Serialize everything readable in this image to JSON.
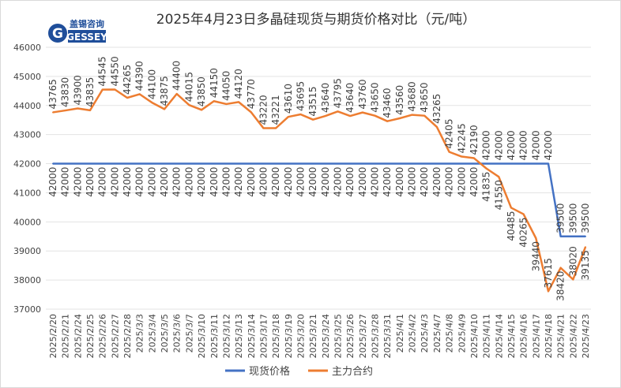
{
  "logo": {
    "cn": "盖锡咨询",
    "en": "GESSEY"
  },
  "chart_data": {
    "type": "line",
    "title": "2025年4月23日多晶硅现货与期货价格对比（元/吨）",
    "ylim": [
      37000,
      46000
    ],
    "yticks": [
      37000,
      38000,
      39000,
      40000,
      41000,
      42000,
      43000,
      44000,
      45000,
      46000
    ],
    "grid": true,
    "legend_position": "bottom",
    "categories": [
      "2025/2/20",
      "2025/2/21",
      "2025/2/24",
      "2025/2/25",
      "2025/2/26",
      "2025/2/27",
      "2025/2/28",
      "2025/3/3",
      "2025/3/4",
      "2025/3/5",
      "2025/3/6",
      "2025/3/7",
      "2025/3/10",
      "2025/3/11",
      "2025/3/12",
      "2025/3/13",
      "2025/3/14",
      "2025/3/17",
      "2025/3/18",
      "2025/3/19",
      "2025/3/20",
      "2025/3/21",
      "2025/3/24",
      "2025/3/25",
      "2025/3/26",
      "2025/3/27",
      "2025/3/28",
      "2025/3/31",
      "2025/4/1",
      "2025/4/2",
      "2025/4/3",
      "2025/4/7",
      "2025/4/8",
      "2025/4/9",
      "2025/4/10",
      "2025/4/11",
      "2025/4/14",
      "2025/4/15",
      "2025/4/16",
      "2025/4/17",
      "2025/4/18",
      "2025/4/21",
      "2025/4/22",
      "2025/4/23"
    ],
    "series": [
      {
        "name": "现货价格",
        "color": "#4472C4",
        "values": [
          42000,
          42000,
          42000,
          42000,
          42000,
          42000,
          42000,
          42000,
          42000,
          42000,
          42000,
          42000,
          42000,
          42000,
          42000,
          42000,
          42000,
          42000,
          42000,
          42000,
          42000,
          42000,
          42000,
          42000,
          42000,
          42000,
          42000,
          42000,
          42000,
          42000,
          42000,
          42000,
          42000,
          42000,
          42000,
          42000,
          42000,
          42000,
          42000,
          42000,
          42000,
          39500,
          39500,
          39500
        ]
      },
      {
        "name": "主力合约",
        "color": "#ED7D31",
        "values": [
          43765,
          43830,
          43900,
          43835,
          44545,
          44550,
          44265,
          44390,
          44100,
          43875,
          44400,
          44015,
          43850,
          44150,
          44050,
          44120,
          43770,
          43220,
          43221,
          43610,
          43695,
          43515,
          43640,
          43795,
          43640,
          43760,
          43650,
          43460,
          43560,
          43680,
          43650,
          43265,
          42405,
          42245,
          42190,
          41835,
          41550,
          40485,
          40265,
          39440,
          37615,
          38420,
          38020,
          39135
        ]
      }
    ]
  }
}
